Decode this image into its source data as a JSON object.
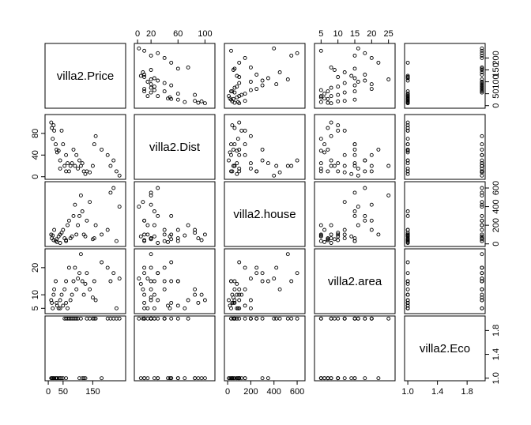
{
  "chart_data": {
    "type": "scatter",
    "title": "",
    "variables": [
      {
        "name": "villa2.Price",
        "range": [
          0,
          250
        ],
        "ticks": [
          0,
          50,
          100,
          150,
          200
        ]
      },
      {
        "name": "villa2.Dist",
        "range": [
          0,
          110
        ],
        "ticks": [
          0,
          20,
          40,
          60,
          80,
          100
        ]
      },
      {
        "name": "villa2.house",
        "range": [
          0,
          640
        ],
        "ticks": [
          0,
          200,
          400,
          600
        ]
      },
      {
        "name": "villa2.area",
        "range": [
          4,
          26
        ],
        "ticks": [
          5,
          10,
          15,
          20,
          25
        ]
      },
      {
        "name": "villa2.Eco",
        "range": [
          1,
          2
        ],
        "ticks": [
          1.0,
          1.4,
          1.8
        ]
      }
    ],
    "outer_axes": {
      "top": [
        {
          "col": 1,
          "ticks": [
            0,
            20,
            60,
            100
          ],
          "labels": [
            "0",
            "20",
            "60",
            "100"
          ]
        },
        {
          "col": 3,
          "ticks": [
            5,
            10,
            15,
            20,
            25
          ],
          "labels": [
            "5",
            "10",
            "15",
            "20",
            "25"
          ]
        }
      ],
      "bottom": [
        {
          "col": 0,
          "ticks": [
            0,
            50,
            150
          ],
          "labels": [
            "0",
            "50",
            "150"
          ]
        },
        {
          "col": 2,
          "ticks": [
            0,
            200,
            400,
            600
          ],
          "labels": [
            "0",
            "200",
            "400",
            "600"
          ]
        },
        {
          "col": 4,
          "ticks": [
            1.0,
            1.4,
            1.8
          ],
          "labels": [
            "1.0",
            "1.4",
            "1.8"
          ]
        }
      ],
      "left": [
        {
          "row": 1,
          "ticks": [
            0,
            40,
            80
          ],
          "labels": [
            "0",
            "40",
            "80"
          ]
        },
        {
          "row": 3,
          "ticks": [
            5,
            10,
            20
          ],
          "labels": [
            "5",
            "10",
            "20"
          ]
        }
      ],
      "right": [
        {
          "row": 0,
          "ticks": [
            0,
            50,
            100,
            150,
            200
          ],
          "labels": [
            "0",
            "50",
            "100",
            "150",
            "200"
          ]
        },
        {
          "row": 2,
          "ticks": [
            0,
            200,
            400,
            600
          ],
          "labels": [
            "0",
            "200",
            "400",
            "600"
          ]
        },
        {
          "row": 4,
          "ticks": [
            1.0,
            1.4,
            1.8
          ],
          "labels": [
            "1.0",
            "1.4",
            "1.8"
          ]
        }
      ]
    },
    "observations": [
      [
        10,
        100,
        100,
        8,
        1
      ],
      [
        12,
        90,
        60,
        7,
        1
      ],
      [
        15,
        70,
        90,
        5,
        1
      ],
      [
        18,
        95,
        40,
        10,
        1
      ],
      [
        20,
        85,
        150,
        12,
        1
      ],
      [
        25,
        60,
        30,
        15,
        1
      ],
      [
        28,
        50,
        50,
        7,
        1
      ],
      [
        30,
        45,
        20,
        6,
        1
      ],
      [
        35,
        48,
        80,
        5,
        1
      ],
      [
        40,
        30,
        10,
        8,
        1
      ],
      [
        45,
        85,
        120,
        10,
        1
      ],
      [
        50,
        60,
        150,
        6,
        1
      ],
      [
        55,
        20,
        60,
        12,
        2
      ],
      [
        60,
        40,
        30,
        15,
        2
      ],
      [
        65,
        25,
        200,
        5,
        2
      ],
      [
        70,
        10,
        250,
        20,
        2
      ],
      [
        75,
        20,
        60,
        8,
        2
      ],
      [
        80,
        25,
        80,
        10,
        2
      ],
      [
        85,
        50,
        300,
        15,
        2
      ],
      [
        90,
        20,
        420,
        20,
        2
      ],
      [
        95,
        40,
        100,
        12,
        2
      ],
      [
        100,
        15,
        200,
        16,
        2
      ],
      [
        105,
        30,
        300,
        18,
        1
      ],
      [
        110,
        20,
        520,
        25,
        2
      ],
      [
        115,
        25,
        350,
        15,
        1
      ],
      [
        120,
        10,
        100,
        10,
        1
      ],
      [
        125,
        5,
        80,
        14,
        1
      ],
      [
        130,
        10,
        250,
        18,
        2
      ],
      [
        140,
        8,
        450,
        12,
        2
      ],
      [
        150,
        20,
        50,
        9,
        2
      ],
      [
        155,
        60,
        60,
        15,
        2
      ],
      [
        160,
        75,
        200,
        8,
        2
      ],
      [
        180,
        50,
        100,
        22,
        1
      ],
      [
        200,
        40,
        150,
        20,
        2
      ],
      [
        210,
        20,
        550,
        15,
        2
      ],
      [
        220,
        30,
        600,
        18,
        2
      ],
      [
        230,
        10,
        30,
        5,
        2
      ],
      [
        240,
        2,
        400,
        16,
        2
      ],
      [
        40,
        15,
        100,
        5,
        1
      ],
      [
        60,
        10,
        40,
        7,
        1
      ]
    ]
  }
}
